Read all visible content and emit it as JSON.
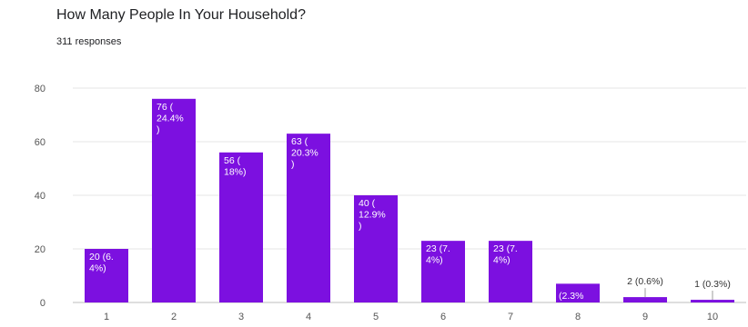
{
  "title": "How Many People In Your Household?",
  "subtitle": "311 responses",
  "colors": {
    "bar": "#7C10E0",
    "grid": "#e6e6e6",
    "axis_text": "#555555"
  },
  "chart_data": {
    "type": "bar",
    "title": "How Many People In Your Household?",
    "xlabel": "",
    "ylabel": "",
    "categories": [
      "1",
      "2",
      "3",
      "4",
      "5",
      "6",
      "7",
      "8",
      "9",
      "10"
    ],
    "values": [
      20,
      76,
      56,
      63,
      40,
      23,
      23,
      7,
      2,
      1
    ],
    "data_labels": [
      [
        "20 (6.",
        "4%)"
      ],
      [
        "76 (",
        "24.4%",
        ")"
      ],
      [
        "56 (",
        "18%)"
      ],
      [
        "63 (",
        "20.3%",
        ")"
      ],
      [
        "40 (",
        "12.9%",
        ")"
      ],
      [
        "23 (7.",
        "4%)"
      ],
      [
        "23 (7.",
        "4%)"
      ],
      [
        "(2.3%"
      ],
      [
        "2 (0.6%)"
      ],
      [
        "1 (0.3%)"
      ]
    ],
    "y_ticks": [
      0,
      20,
      40,
      60,
      80
    ],
    "ylim": [
      0,
      80
    ],
    "grid": true,
    "legend": "none"
  }
}
